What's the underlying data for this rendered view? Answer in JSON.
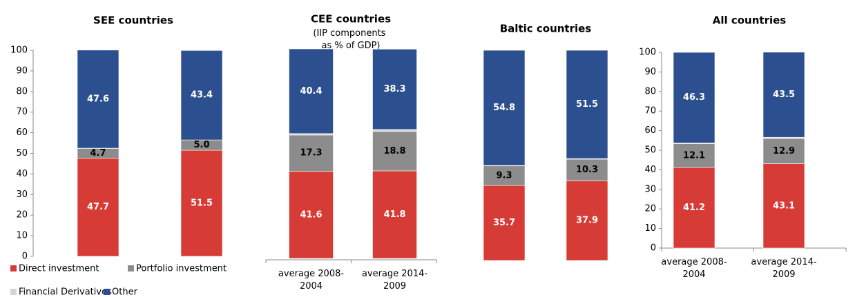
{
  "chart_data": [
    {
      "type": "stacked_bar",
      "title": "SEE countries",
      "categories": [
        null,
        null
      ],
      "series": [
        {
          "name": "Direct investment",
          "color": "#d63b36",
          "values": [
            47.7,
            51.5
          ],
          "value_labels": [
            "47.7",
            "51.5"
          ]
        },
        {
          "name": "Portfolio investment",
          "color": "#8c8c8c",
          "values": [
            4.7,
            5.0
          ],
          "value_labels": [
            "4.7",
            "5.0"
          ]
        },
        {
          "name": "Financial Derivatives",
          "color": "#d4d4d4",
          "values": [
            0.1,
            0.0
          ],
          "value_labels": [
            "0.1",
            "0.0"
          ]
        },
        {
          "name": "Other",
          "color": "#2c4f8f",
          "values": [
            47.6,
            43.4
          ],
          "value_labels": [
            "47.6",
            "43.4"
          ]
        }
      ],
      "ylim": [
        0,
        100
      ],
      "yticks": [
        0,
        10,
        20,
        30,
        40,
        50,
        60,
        70,
        80,
        90,
        100
      ],
      "legend": "bottom"
    },
    {
      "type": "stacked_bar",
      "title": "CEE countries",
      "subtitle": "(IIP components as % of GDP)",
      "categories": [
        "average 2008-2004",
        "average 2014-2009"
      ],
      "series": [
        {
          "name": "Direct investment",
          "color": "#d63b36",
          "values": [
            41.6,
            41.8
          ],
          "value_labels": [
            "41.6",
            "41.8"
          ]
        },
        {
          "name": "Portfolio investment",
          "color": "#8c8c8c",
          "values": [
            17.3,
            18.8
          ],
          "value_labels": [
            "17.3",
            "18.8"
          ]
        },
        {
          "name": "Financial Derivatives",
          "color": "#d4d4d4",
          "values": [
            0.7,
            1.0
          ],
          "value_labels": [
            "0.7",
            "1.0"
          ]
        },
        {
          "name": "Other",
          "color": "#2c4f8f",
          "values": [
            40.4,
            38.3
          ],
          "value_labels": [
            "40.4",
            "38.3"
          ]
        }
      ],
      "ylim": [
        0,
        100
      ]
    },
    {
      "type": "stacked_bar",
      "title": "Baltic countries",
      "categories": [
        null,
        null
      ],
      "series": [
        {
          "name": "Direct investment",
          "color": "#d63b36",
          "values": [
            35.7,
            37.9
          ],
          "value_labels": [
            "35.7",
            "37.9"
          ]
        },
        {
          "name": "Portfolio investment",
          "color": "#8c8c8c",
          "values": [
            9.3,
            10.3
          ],
          "value_labels": [
            "9.3",
            "10.3"
          ]
        },
        {
          "name": "Financial Derivatives",
          "color": "#d4d4d4",
          "values": [
            0.2,
            0.3
          ],
          "value_labels": [
            "0.2",
            "0.3"
          ]
        },
        {
          "name": "Other",
          "color": "#2c4f8f",
          "values": [
            54.8,
            51.5
          ],
          "value_labels": [
            "54.8",
            "51.5"
          ]
        }
      ],
      "ylim": [
        0,
        100
      ]
    },
    {
      "type": "stacked_bar",
      "title": "All countries",
      "categories": [
        "average 2008-2004",
        "average 2014-2009"
      ],
      "series": [
        {
          "name": "Direct investment",
          "color": "#d63b36",
          "values": [
            41.2,
            43.1
          ],
          "value_labels": [
            "41.2",
            "43.1"
          ]
        },
        {
          "name": "Portfolio investment",
          "color": "#8c8c8c",
          "values": [
            12.1,
            12.9
          ],
          "value_labels": [
            "12.1",
            "12.9"
          ]
        },
        {
          "name": "Financial Derivatives",
          "color": "#d4d4d4",
          "values": [
            0.4,
            0.6
          ],
          "value_labels": [
            "0.4",
            "0.6"
          ]
        },
        {
          "name": "Other",
          "color": "#2c4f8f",
          "values": [
            46.3,
            43.5
          ],
          "value_labels": [
            "46.3",
            "43.5"
          ]
        }
      ],
      "ylim": [
        0,
        100
      ],
      "yticks": [
        0,
        10,
        20,
        30,
        40,
        50,
        60,
        70,
        80,
        90,
        100
      ]
    }
  ]
}
